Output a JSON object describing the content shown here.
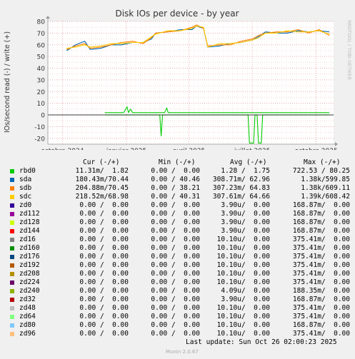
{
  "chart_data": {
    "type": "line",
    "title": "Disk IOs per device - by year",
    "ylabel": "IOs/second read (-) / write (+)",
    "watermark": "RRDTOOL / TOBI OETIKER",
    "ylim": [
      -25,
      80
    ],
    "yticks": [
      -20,
      -10,
      0,
      10,
      20,
      30,
      40,
      50,
      60,
      70,
      80
    ],
    "xlim": [
      "2024-09-10",
      "2025-10-26"
    ],
    "xticks": [
      {
        "label": "octobre 2024",
        "date": "2024-10-01"
      },
      {
        "label": "janvier 2025",
        "date": "2025-01-01"
      },
      {
        "label": "avril 2025",
        "date": "2025-04-01"
      },
      {
        "label": "juillet 2025",
        "date": "2025-07-01"
      },
      {
        "label": "octobre 2025",
        "date": "2025-10-01"
      }
    ],
    "grid": true,
    "series": [
      {
        "name": "sda",
        "color": "#0066b3",
        "sign": 1,
        "points": [
          [
            "2024-10-07",
            55
          ],
          [
            "2024-10-20",
            60
          ],
          [
            "2024-11-02",
            63
          ],
          [
            "2024-11-10",
            56
          ],
          [
            "2024-11-25",
            57
          ],
          [
            "2024-12-10",
            60
          ],
          [
            "2024-12-25",
            60
          ],
          [
            "2025-01-10",
            62
          ],
          [
            "2025-01-25",
            62
          ],
          [
            "2025-02-06",
            65
          ],
          [
            "2025-02-12",
            70
          ],
          [
            "2025-03-01",
            71
          ],
          [
            "2025-03-20",
            73
          ],
          [
            "2025-04-05",
            73
          ],
          [
            "2025-04-12",
            76
          ],
          [
            "2025-04-22",
            74
          ],
          [
            "2025-04-28",
            58
          ],
          [
            "2025-05-15",
            59
          ],
          [
            "2025-05-30",
            61
          ],
          [
            "2025-06-15",
            62
          ],
          [
            "2025-07-01",
            64
          ],
          [
            "2025-07-10",
            67
          ],
          [
            "2025-07-20",
            71
          ],
          [
            "2025-08-05",
            70
          ],
          [
            "2025-08-20",
            70
          ],
          [
            "2025-09-05",
            72
          ],
          [
            "2025-09-20",
            71
          ],
          [
            "2025-10-05",
            72
          ],
          [
            "2025-10-20",
            71
          ]
        ]
      },
      {
        "name": "sdb",
        "color": "#ff8000",
        "sign": 1,
        "points": [
          [
            "2024-10-07",
            56
          ],
          [
            "2024-10-20",
            59
          ],
          [
            "2024-11-02",
            61
          ],
          [
            "2024-11-10",
            57
          ],
          [
            "2024-11-25",
            58
          ],
          [
            "2024-12-10",
            60
          ],
          [
            "2024-12-25",
            62
          ],
          [
            "2025-01-10",
            63
          ],
          [
            "2025-01-25",
            61
          ],
          [
            "2025-02-06",
            66
          ],
          [
            "2025-02-12",
            70
          ],
          [
            "2025-03-01",
            71
          ],
          [
            "2025-03-20",
            72
          ],
          [
            "2025-04-05",
            75
          ],
          [
            "2025-04-12",
            77
          ],
          [
            "2025-04-22",
            74
          ],
          [
            "2025-04-28",
            59
          ],
          [
            "2025-05-15",
            60
          ],
          [
            "2025-05-30",
            60
          ],
          [
            "2025-06-15",
            63
          ],
          [
            "2025-07-01",
            65
          ],
          [
            "2025-07-10",
            68
          ],
          [
            "2025-07-20",
            70
          ],
          [
            "2025-08-05",
            71
          ],
          [
            "2025-08-20",
            71
          ],
          [
            "2025-09-05",
            73
          ],
          [
            "2025-09-20",
            70
          ],
          [
            "2025-10-05",
            73
          ],
          [
            "2025-10-20",
            68
          ]
        ]
      },
      {
        "name": "sdc",
        "color": "#ffcc00",
        "sign": 1,
        "points": [
          [
            "2024-10-07",
            57
          ],
          [
            "2024-10-20",
            58
          ],
          [
            "2024-11-02",
            60
          ],
          [
            "2024-11-10",
            58
          ],
          [
            "2024-11-25",
            59
          ],
          [
            "2024-12-10",
            61
          ],
          [
            "2024-12-25",
            61
          ],
          [
            "2025-01-10",
            62
          ],
          [
            "2025-01-25",
            62
          ],
          [
            "2025-02-06",
            67
          ],
          [
            "2025-02-12",
            69
          ],
          [
            "2025-03-01",
            72
          ],
          [
            "2025-03-20",
            72
          ],
          [
            "2025-04-05",
            74
          ],
          [
            "2025-04-12",
            76
          ],
          [
            "2025-04-22",
            75
          ],
          [
            "2025-04-28",
            58
          ],
          [
            "2025-05-15",
            61
          ],
          [
            "2025-05-30",
            61
          ],
          [
            "2025-06-15",
            62
          ],
          [
            "2025-07-01",
            64
          ],
          [
            "2025-07-10",
            66
          ],
          [
            "2025-07-20",
            70
          ],
          [
            "2025-08-05",
            70
          ],
          [
            "2025-08-20",
            72
          ],
          [
            "2025-09-05",
            71
          ],
          [
            "2025-09-20",
            71
          ],
          [
            "2025-10-05",
            72
          ],
          [
            "2025-10-20",
            69
          ]
        ]
      },
      {
        "name": "rbd0",
        "color": "#00cc00",
        "sign": 1,
        "points": [
          [
            "2024-12-01",
            2
          ],
          [
            "2024-12-28",
            2
          ],
          [
            "2025-01-02",
            7
          ],
          [
            "2025-01-04",
            2
          ],
          [
            "2025-01-07",
            5
          ],
          [
            "2025-01-10",
            2
          ],
          [
            "2025-02-25",
            2
          ],
          [
            "2025-02-28",
            6
          ],
          [
            "2025-03-02",
            2
          ],
          [
            "2025-07-01",
            2
          ],
          [
            "2025-07-05",
            2
          ],
          [
            "2025-08-01",
            2
          ],
          [
            "2025-10-20",
            2
          ]
        ]
      },
      {
        "name": "rbd0 read",
        "color": "#00cc00",
        "sign": -1,
        "points": [
          [
            "2024-12-01",
            0
          ],
          [
            "2025-02-18",
            0
          ],
          [
            "2025-02-20",
            -18
          ],
          [
            "2025-02-22",
            0
          ],
          [
            "2025-06-25",
            0
          ],
          [
            "2025-06-27",
            -24
          ],
          [
            "2025-07-03",
            -24
          ],
          [
            "2025-07-05",
            0
          ],
          [
            "2025-07-08",
            0
          ],
          [
            "2025-07-10",
            -24
          ],
          [
            "2025-07-14",
            -24
          ],
          [
            "2025-07-16",
            0
          ],
          [
            "2025-10-20",
            0
          ]
        ]
      }
    ]
  },
  "legend": {
    "header": {
      "cur": "Cur (-/+)",
      "min": "Min (-/+)",
      "avg": "Avg (-/+)",
      "max": "Max (-/+)"
    },
    "rows": [
      {
        "name": "rbd0",
        "color": "#00cc00",
        "cur": "11.31m/  1.82",
        "min": "0.00 /  0.00",
        "avg": "1.28 /  1.75",
        "max": "722.53 / 80.25"
      },
      {
        "name": "sda",
        "color": "#0066b3",
        "cur": "180.43m/70.44",
        "min": "0.00 / 40.46",
        "avg": "308.71m/ 62.96",
        "max": "1.38k/599.85"
      },
      {
        "name": "sdb",
        "color": "#ff8000",
        "cur": "204.88m/70.45",
        "min": "0.00 / 38.21",
        "avg": "307.23m/ 64.83",
        "max": "1.38k/609.11"
      },
      {
        "name": "sdc",
        "color": "#ffcc00",
        "cur": "218.52m/68.98",
        "min": "0.00 / 40.31",
        "avg": "307.61m/ 64.66",
        "max": "1.39k/608.42"
      },
      {
        "name": "zd0",
        "color": "#330099",
        "cur": "0.00 /  0.00",
        "min": "0.00 /  0.00",
        "avg": "3.90u/  0.00",
        "max": "168.87m/  0.00"
      },
      {
        "name": "zd112",
        "color": "#990099",
        "cur": "0.00 /  0.00",
        "min": "0.00 /  0.00",
        "avg": "3.90u/  0.00",
        "max": "168.87m/  0.00"
      },
      {
        "name": "zd128",
        "color": "#ccff00",
        "cur": "0.00 /  0.00",
        "min": "0.00 /  0.00",
        "avg": "3.90u/  0.00",
        "max": "168.87m/  0.00"
      },
      {
        "name": "zd144",
        "color": "#ff0000",
        "cur": "0.00 /  0.00",
        "min": "0.00 /  0.00",
        "avg": "3.90u/  0.00",
        "max": "168.87m/  0.00"
      },
      {
        "name": "zd16",
        "color": "#808080",
        "cur": "0.00 /  0.00",
        "min": "0.00 /  0.00",
        "avg": "10.10u/  0.00",
        "max": "375.41m/  0.00"
      },
      {
        "name": "zd160",
        "color": "#008f00",
        "cur": "0.00 /  0.00",
        "min": "0.00 /  0.00",
        "avg": "10.10u/  0.00",
        "max": "375.41m/  0.00"
      },
      {
        "name": "zd176",
        "color": "#00487d",
        "cur": "0.00 /  0.00",
        "min": "0.00 /  0.00",
        "avg": "10.10u/  0.00",
        "max": "375.41m/  0.00"
      },
      {
        "name": "zd192",
        "color": "#b35a00",
        "cur": "0.00 /  0.00",
        "min": "0.00 /  0.00",
        "avg": "10.10u/  0.00",
        "max": "375.41m/  0.00"
      },
      {
        "name": "zd208",
        "color": "#b38f00",
        "cur": "0.00 /  0.00",
        "min": "0.00 /  0.00",
        "avg": "10.10u/  0.00",
        "max": "375.41m/  0.00"
      },
      {
        "name": "zd224",
        "color": "#6b006b",
        "cur": "0.00 /  0.00",
        "min": "0.00 /  0.00",
        "avg": "10.10u/  0.00",
        "max": "375.41m/  0.00"
      },
      {
        "name": "zd240",
        "color": "#8fb300",
        "cur": "0.00 /  0.00",
        "min": "0.00 /  0.00",
        "avg": "4.09u/  0.00",
        "max": "188.35m/  0.00"
      },
      {
        "name": "zd32",
        "color": "#b30000",
        "cur": "0.00 /  0.00",
        "min": "0.00 /  0.00",
        "avg": "3.90u/  0.00",
        "max": "168.87m/  0.00"
      },
      {
        "name": "zd48",
        "color": "#bebebe",
        "cur": "0.00 /  0.00",
        "min": "0.00 /  0.00",
        "avg": "10.10u/  0.00",
        "max": "375.41m/  0.00"
      },
      {
        "name": "zd64",
        "color": "#80ff80",
        "cur": "0.00 /  0.00",
        "min": "0.00 /  0.00",
        "avg": "10.10u/  0.00",
        "max": "375.41m/  0.00"
      },
      {
        "name": "zd80",
        "color": "#80c9ff",
        "cur": "0.00 /  0.00",
        "min": "0.00 /  0.00",
        "avg": "10.10u/  0.00",
        "max": "168.87m/  0.00"
      },
      {
        "name": "zd96",
        "color": "#ffc080",
        "cur": "0.00 /  0.00",
        "min": "0.00 /  0.00",
        "avg": "10.10u/  0.00",
        "max": "375.41m/  0.00"
      }
    ]
  },
  "footer": {
    "last_update": "Last update: Sun Oct 26 02:00:23 2025",
    "munin": "Munin 2.0.67"
  }
}
